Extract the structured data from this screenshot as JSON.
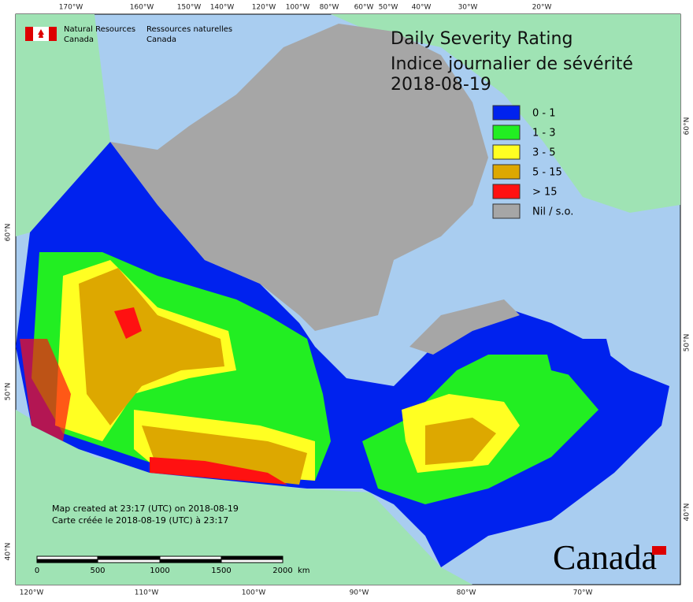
{
  "header": {
    "agency_en": [
      "Natural Resources",
      "Canada"
    ],
    "agency_fr": [
      "Ressources naturelles",
      "Canada"
    ]
  },
  "map": {
    "title": [
      "Daily Severity Rating",
      "Indice journalier de sévérité",
      "2018-08-19"
    ],
    "legend": [
      {
        "label": "0 - 1",
        "color": "#0022ee"
      },
      {
        "label": "1 - 3",
        "color": "#22ee22"
      },
      {
        "label": "3 - 5",
        "color": "#ffff22"
      },
      {
        "label": "5 - 15",
        "color": "#dda800"
      },
      {
        "label": "> 15",
        "color": "#ff1111"
      },
      {
        "label": "Nil / s.o.",
        "color": "#a6a6a6"
      }
    ],
    "notes": [
      "Map created at 23:17 (UTC) on 2018-08-19",
      "Carte créée le 2018-08-19 (UTC) à 23:17"
    ],
    "scale": {
      "labels": [
        "0",
        "500",
        "1000",
        "1500",
        "2000"
      ],
      "unit": "km"
    },
    "wordmark": "Canada",
    "top_labels": [
      "170°W",
      "160°W",
      "150°W",
      "140°W",
      "120°W",
      "100°W",
      "80°W",
      "60°W",
      "50°W",
      "40°W",
      "30°W",
      "20°W"
    ],
    "bottom_labels": [
      "120°W",
      "110°W",
      "100°W",
      "90°W",
      "80°W",
      "70°W"
    ],
    "left_labels": [
      "60°N",
      "50°N",
      "40°N"
    ],
    "right_labels": [
      "60°N",
      "50°N",
      "40°N"
    ]
  }
}
